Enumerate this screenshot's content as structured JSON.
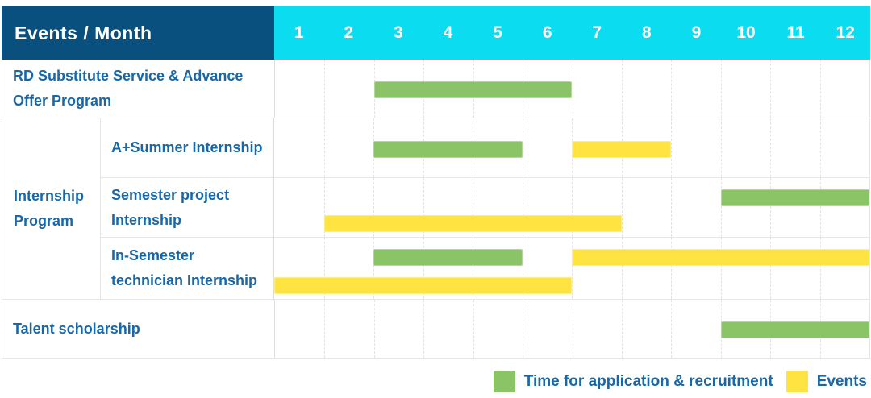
{
  "table": {
    "corner_label": "Events / Month",
    "months": [
      "1",
      "2",
      "3",
      "4",
      "5",
      "6",
      "7",
      "8",
      "9",
      "10",
      "11",
      "12"
    ]
  },
  "legend": {
    "items": [
      {
        "key": "application",
        "label": "Time for application & recruitment"
      },
      {
        "key": "event",
        "label": "Events"
      }
    ]
  },
  "colors": {
    "header_bg": "#0A507F",
    "months_bg": "#0CDCF0",
    "application": "#8AC466",
    "event": "#FFE340",
    "label_text": "#1767A9",
    "grid": "#E6E6E6"
  },
  "chart_data": {
    "type": "gantt",
    "x_axis": {
      "label": "Month",
      "range": [
        1,
        12
      ],
      "ticks": [
        1,
        2,
        3,
        4,
        5,
        6,
        7,
        8,
        9,
        10,
        11,
        12
      ]
    },
    "series_legend": {
      "application": "Time for application & recruitment",
      "event": "Events"
    },
    "rows": [
      {
        "label": "RD Substitute Service & Advance Offer Program",
        "group": "",
        "tracks": [
          [
            {
              "series": "application",
              "start_month": 3,
              "end_month": 6
            }
          ]
        ]
      },
      {
        "label": "A+Summer Internship",
        "group": "Internship Program",
        "tracks": [
          [
            {
              "series": "application",
              "start_month": 3,
              "end_month": 5
            },
            {
              "series": "event",
              "start_month": 7,
              "end_month": 8
            }
          ]
        ]
      },
      {
        "label": "Semester project Internship",
        "group": "Internship Program",
        "tracks": [
          [
            {
              "series": "application",
              "start_month": 10,
              "end_month": 12
            }
          ],
          [
            {
              "series": "event",
              "start_month": 2,
              "end_month": 7
            }
          ]
        ]
      },
      {
        "label": "In-Semester technician Internship",
        "group": "Internship Program",
        "tracks": [
          [
            {
              "series": "application",
              "start_month": 3,
              "end_month": 5
            },
            {
              "series": "event",
              "start_month": 7,
              "end_month": 12
            }
          ],
          [
            {
              "series": "event",
              "start_month": 1,
              "end_month": 6
            }
          ]
        ]
      },
      {
        "label": "Talent scholarship",
        "group": "",
        "tracks": [
          [
            {
              "series": "application",
              "start_month": 10,
              "end_month": 12
            }
          ]
        ]
      }
    ]
  }
}
